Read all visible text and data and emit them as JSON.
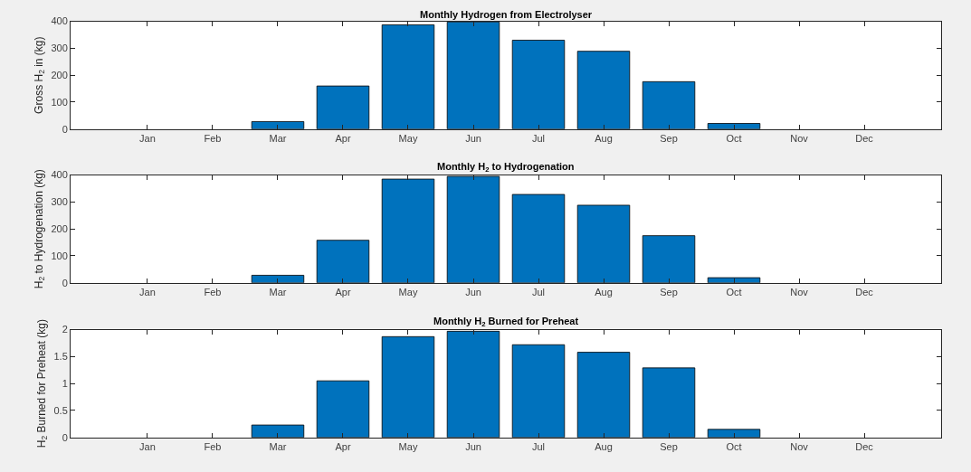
{
  "chart_data": [
    {
      "type": "bar",
      "title": "Monthly Hydrogen from Electrolyser",
      "ylabel": "Gross H$_{2}$ in (kg)",
      "categories": [
        "Jan",
        "Feb",
        "Mar",
        "Apr",
        "May",
        "Jun",
        "Jul",
        "Aug",
        "Sep",
        "Oct",
        "Nov",
        "Dec"
      ],
      "values": [
        0,
        0,
        28,
        160,
        387,
        398,
        330,
        289,
        176,
        21,
        0,
        0
      ],
      "color": "#0072bd",
      "ylim": [
        0,
        400
      ],
      "yticks": [
        0,
        100,
        200,
        300,
        400
      ]
    },
    {
      "type": "bar",
      "title": "Monthly H$_{2}$ to Hydrogenation",
      "ylabel": "H$_{2}$ to Hydrogenation (kg)",
      "categories": [
        "Jan",
        "Feb",
        "Mar",
        "Apr",
        "May",
        "Jun",
        "Jul",
        "Aug",
        "Sep",
        "Oct",
        "Nov",
        "Dec"
      ],
      "values": [
        0,
        0,
        28,
        158,
        385,
        395,
        328,
        288,
        175,
        19,
        0,
        0
      ],
      "color": "#0072bd",
      "ylim": [
        0,
        400
      ],
      "yticks": [
        0,
        100,
        200,
        300,
        400
      ]
    },
    {
      "type": "bar",
      "title": "Monthly H$_{2}$ Burned for Preheat",
      "ylabel": "H$_{2}$ Burned for Preheat (kg)",
      "categories": [
        "Jan",
        "Feb",
        "Mar",
        "Apr",
        "May",
        "Jun",
        "Jul",
        "Aug",
        "Sep",
        "Oct",
        "Nov",
        "Dec"
      ],
      "values": [
        0,
        0,
        0.23,
        1.05,
        1.87,
        1.97,
        1.72,
        1.58,
        1.29,
        0.15,
        0,
        0
      ],
      "color": "#0072bd",
      "ylim": [
        0,
        2
      ],
      "yticks": [
        0,
        {
          "value": 0.5,
          "label": "0.5"
        },
        1,
        {
          "value": 1.5,
          "label": "1.5"
        },
        2
      ]
    }
  ]
}
